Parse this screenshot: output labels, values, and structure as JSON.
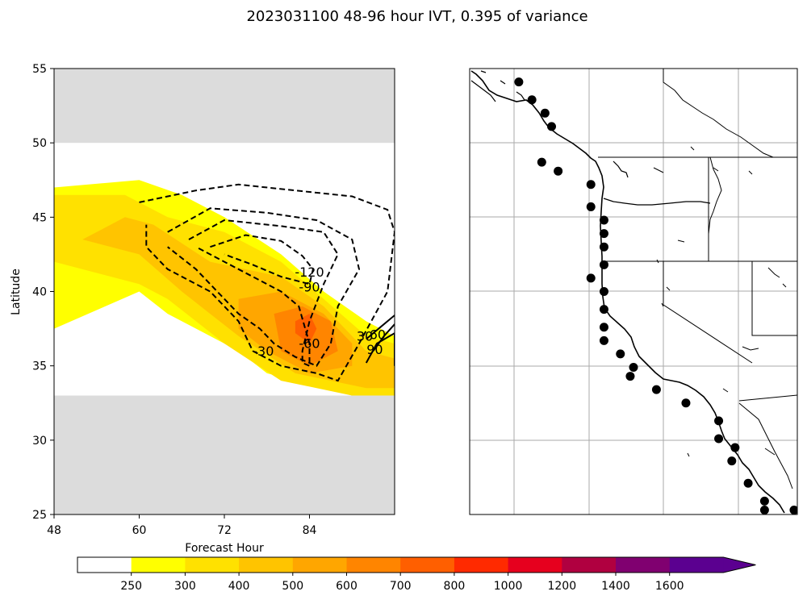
{
  "figure": {
    "title": "2023031100 48-96 hour IVT, 0.395 of variance"
  },
  "chart_data": [
    {
      "type": "heatmap",
      "panel": "left",
      "xlabel": "Forecast Hour",
      "ylabel": "Latitude",
      "xlim": [
        48,
        96
      ],
      "ylim": [
        25,
        55
      ],
      "xticks": [
        48,
        60,
        72,
        84
      ],
      "yticks": [
        25,
        30,
        35,
        40,
        45,
        50,
        55
      ],
      "masked_bands": [
        [
          50,
          55
        ],
        [
          25,
          33
        ]
      ],
      "grid": false,
      "filled_contours": [
        {
          "level": 250,
          "color": "#ffff00",
          "polygon": [
            [
              48,
              47
            ],
            [
              60,
              47.5
            ],
            [
              66,
              46.5
            ],
            [
              72,
              45
            ],
            [
              80,
              42.5
            ],
            [
              86,
              40
            ],
            [
              92,
              38
            ],
            [
              96,
              37
            ],
            [
              96,
              33
            ],
            [
              90,
              33
            ],
            [
              78,
              34.5
            ],
            [
              74,
              36
            ],
            [
              64,
              38.5
            ],
            [
              60,
              40
            ],
            [
              48,
              37.5
            ]
          ]
        },
        {
          "level": 300,
          "color": "#ffe100",
          "polygon": [
            [
              48,
              46.5
            ],
            [
              58,
              46.5
            ],
            [
              64,
              45
            ],
            [
              72,
              44
            ],
            [
              80,
              42
            ],
            [
              86,
              39.5
            ],
            [
              92,
              37
            ],
            [
              96,
              36.5
            ],
            [
              96,
              33
            ],
            [
              90,
              33
            ],
            [
              80,
              34
            ],
            [
              72,
              36.5
            ],
            [
              64,
              39.5
            ],
            [
              60,
              40.5
            ],
            [
              48,
              42
            ]
          ]
        },
        {
          "level": 400,
          "color": "#ffc400",
          "polygon": [
            [
              52,
              43.5
            ],
            [
              58,
              45
            ],
            [
              62,
              44.5
            ],
            [
              70,
              42
            ],
            [
              80,
              41
            ],
            [
              86,
              39
            ],
            [
              92,
              36
            ],
            [
              96,
              35.5
            ],
            [
              96,
              33.5
            ],
            [
              92,
              33.5
            ],
            [
              82,
              34.5
            ],
            [
              74,
              37
            ],
            [
              66,
              40
            ],
            [
              60,
              42.5
            ]
          ]
        },
        {
          "level": 500,
          "color": "#ffa600",
          "polygon": [
            [
              74,
              39.5
            ],
            [
              80,
              40
            ],
            [
              86,
              38.5
            ],
            [
              90,
              36.5
            ],
            [
              90,
              35
            ],
            [
              84,
              34.5
            ],
            [
              78,
              36
            ],
            [
              74,
              37.5
            ]
          ]
        },
        {
          "level": 600,
          "color": "#ff8500",
          "polygon": [
            [
              79,
              38.5
            ],
            [
              83,
              39
            ],
            [
              87,
              38
            ],
            [
              88,
              36
            ],
            [
              84,
              35
            ],
            [
              80,
              36
            ]
          ]
        },
        {
          "level": 700,
          "color": "#ff5f00",
          "polygon": [
            [
              82,
              38
            ],
            [
              84,
              38.5
            ],
            [
              85,
              37.5
            ],
            [
              84,
              36.5
            ],
            [
              82,
              37.2
            ]
          ]
        }
      ],
      "line_contours": [
        {
          "level": -30,
          "style": "dashed",
          "points": [
            [
              60,
              46
            ],
            [
              68,
              46.8
            ],
            [
              74,
              47.2
            ],
            [
              82,
              46.8
            ],
            [
              90,
              46.4
            ],
            [
              95,
              45.5
            ],
            [
              96,
              44
            ],
            [
              95,
              40
            ],
            [
              91,
              36.5
            ],
            [
              88,
              34
            ],
            [
              85,
              34.5
            ],
            [
              80,
              35
            ],
            [
              76,
              36
            ],
            [
              74,
              38
            ],
            [
              72,
              39
            ],
            [
              70,
              40
            ],
            [
              64,
              41.5
            ],
            [
              61,
              43
            ],
            [
              61,
              44.5
            ]
          ]
        },
        {
          "level": -60,
          "style": "dashed",
          "points": [
            [
              64,
              44
            ],
            [
              70,
              45.6
            ],
            [
              78,
              45.3
            ],
            [
              85,
              44.8
            ],
            [
              90,
              43.5
            ],
            [
              91,
              41.5
            ],
            [
              88,
              39
            ],
            [
              87,
              36.5
            ],
            [
              85,
              35
            ],
            [
              82,
              35.6
            ],
            [
              79,
              36.5
            ],
            [
              77,
              37.5
            ],
            [
              74,
              38.5
            ],
            [
              71,
              40
            ],
            [
              68,
              41.5
            ],
            [
              64,
              43
            ]
          ]
        },
        {
          "level": -90,
          "style": "dashed",
          "points": [
            [
              67,
              43.5
            ],
            [
              72,
              44.8
            ],
            [
              80,
              44.4
            ],
            [
              86,
              44
            ],
            [
              88,
              42.5
            ],
            [
              86,
              40.5
            ],
            [
              84,
              38
            ],
            [
              83,
              36
            ],
            [
              83,
              35.2
            ],
            [
              84,
              35
            ],
            [
              84,
              36.5
            ],
            [
              82.5,
              39
            ],
            [
              80,
              40
            ],
            [
              76,
              41
            ],
            [
              72,
              42
            ],
            [
              68,
              43
            ]
          ]
        },
        {
          "level": -120,
          "style": "dashed",
          "points": [
            [
              70,
              43
            ],
            [
              75,
              43.8
            ],
            [
              80,
              43.4
            ],
            [
              83,
              42.4
            ],
            [
              84.5,
              41.5
            ],
            [
              84,
              40.5
            ],
            [
              80,
              41
            ],
            [
              76,
              41.8
            ],
            [
              72,
              42.5
            ]
          ]
        },
        {
          "level": 30,
          "style": "solid",
          "points": [
            [
              92,
              36.8
            ],
            [
              94,
              37.6
            ],
            [
              96,
              38.4
            ]
          ]
        },
        {
          "level": 60,
          "style": "solid",
          "points": [
            [
              93,
              36
            ],
            [
              94.5,
              37
            ],
            [
              96,
              37.8
            ]
          ]
        },
        {
          "level": 90,
          "style": "solid",
          "points": [
            [
              92,
              35.2
            ],
            [
              93.5,
              36.5
            ],
            [
              96,
              37.2
            ],
            [
              96,
              35
            ]
          ]
        }
      ],
      "contour_labels": [
        {
          "text": "-120",
          "x": 84,
          "y": 41
        },
        {
          "text": "-90",
          "x": 84,
          "y": 40
        },
        {
          "text": "-60",
          "x": 84,
          "y": 36.2
        },
        {
          "text": "-30",
          "x": 77.5,
          "y": 35.7
        },
        {
          "text": "30",
          "x": 91.8,
          "y": 36.7
        },
        {
          "text": "60",
          "x": 93.6,
          "y": 36.8
        },
        {
          "text": "90",
          "x": 93.2,
          "y": 35.8
        }
      ]
    },
    {
      "type": "scatter",
      "panel": "right",
      "description": "map of US west coast with station markers",
      "grid": true,
      "points": [
        [
          0.15,
          0.03
        ],
        [
          0.19,
          0.07
        ],
        [
          0.23,
          0.1
        ],
        [
          0.25,
          0.13
        ],
        [
          0.22,
          0.21
        ],
        [
          0.27,
          0.23
        ],
        [
          0.37,
          0.26
        ],
        [
          0.37,
          0.31
        ],
        [
          0.41,
          0.34
        ],
        [
          0.41,
          0.37
        ],
        [
          0.41,
          0.4
        ],
        [
          0.41,
          0.44
        ],
        [
          0.37,
          0.47
        ],
        [
          0.41,
          0.5
        ],
        [
          0.41,
          0.54
        ],
        [
          0.41,
          0.58
        ],
        [
          0.41,
          0.61
        ],
        [
          0.46,
          0.64
        ],
        [
          0.5,
          0.67
        ],
        [
          0.49,
          0.69
        ],
        [
          0.57,
          0.72
        ],
        [
          0.66,
          0.75
        ],
        [
          0.76,
          0.79
        ],
        [
          0.76,
          0.83
        ],
        [
          0.81,
          0.85
        ],
        [
          0.8,
          0.88
        ],
        [
          0.85,
          0.93
        ],
        [
          0.9,
          0.97
        ],
        [
          0.9,
          0.99
        ],
        [
          0.99,
          0.99
        ]
      ]
    }
  ],
  "colorbar": {
    "tick_labels": [
      "250",
      "300",
      "400",
      "500",
      "600",
      "700",
      "800",
      "1000",
      "1200",
      "1400",
      "1600"
    ],
    "colors": [
      "#ffffff",
      "#ffff00",
      "#ffe100",
      "#ffc400",
      "#ffa600",
      "#ff8500",
      "#ff5f00",
      "#ff2a00",
      "#e6001e",
      "#b00040",
      "#800070",
      "#5b0090"
    ],
    "extend": "max"
  }
}
